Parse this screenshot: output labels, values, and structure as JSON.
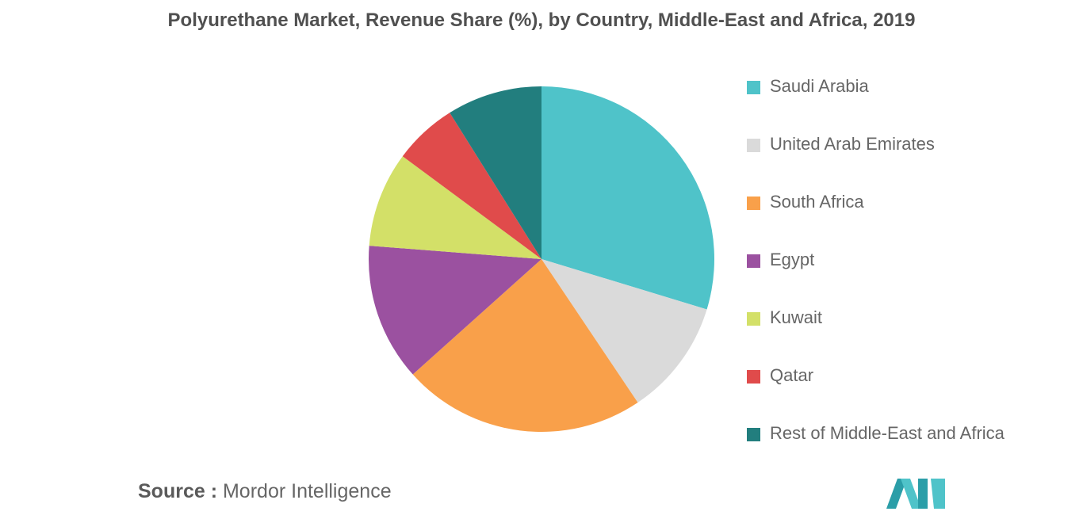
{
  "title": "Polyurethane Market, Revenue Share (%), by Country, Middle-East and Africa, 2019",
  "source": {
    "label": "Source :",
    "value": "Mordor Intelligence"
  },
  "chart_data": {
    "type": "pie",
    "title": "Polyurethane Market, Revenue Share (%), by Country, Middle-East and Africa, 2019",
    "legend_position": "right",
    "start_angle_deg": 0,
    "direction": "clockwise",
    "slices": [
      {
        "label": "Saudi Arabia",
        "value": 30,
        "color": "#4fc3c9"
      },
      {
        "label": "United Arab Emirates",
        "value": 11,
        "color": "#dadada"
      },
      {
        "label": "South Africa",
        "value": 23,
        "color": "#f9a04a"
      },
      {
        "label": "Egypt",
        "value": 13,
        "color": "#9b51a0"
      },
      {
        "label": "Kuwait",
        "value": 9,
        "color": "#d3e068"
      },
      {
        "label": "Qatar",
        "value": 6,
        "color": "#e04b4b"
      },
      {
        "label": "Rest of Middle-East and Africa",
        "value": 9,
        "color": "#227e7e"
      }
    ]
  },
  "logo": {
    "colors": [
      "#2b9ea8",
      "#4fc3c9"
    ]
  }
}
